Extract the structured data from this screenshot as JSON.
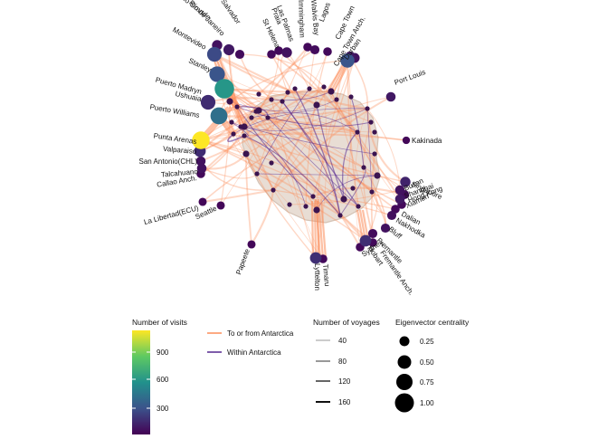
{
  "chart_data": {
    "type": "network map (polar projection)",
    "nodes": [
      {
        "id": "Port Louis",
        "visits": 80,
        "centrality": 0.06
      },
      {
        "id": "Kakinada",
        "visits": 20,
        "centrality": 0.02
      },
      {
        "id": "Singapore",
        "visits": 120,
        "centrality": 0.08
      },
      {
        "id": "Busan",
        "visits": 60,
        "centrality": 0.06
      },
      {
        "id": "Shanghai",
        "visits": 80,
        "centrality": 0.06
      },
      {
        "id": "Hong Kong",
        "visits": 40,
        "centrality": 0.05
      },
      {
        "id": "Xiamen",
        "visits": 30,
        "centrality": 0.04
      },
      {
        "id": "Dalian",
        "visits": 30,
        "centrality": 0.04
      },
      {
        "id": "Nakhodka",
        "visits": 50,
        "centrality": 0.05
      },
      {
        "id": "Bluff",
        "visits": 60,
        "centrality": 0.05
      },
      {
        "id": "Fremantle",
        "visits": 40,
        "centrality": 0.05
      },
      {
        "id": "Hobart",
        "visits": 160,
        "centrality": 0.12
      },
      {
        "id": "Fremantle Anch.",
        "visits": 30,
        "centrality": 0.04
      },
      {
        "id": "Sydney",
        "visits": 30,
        "centrality": 0.04
      },
      {
        "id": "Lyttelton",
        "visits": 160,
        "centrality": 0.12
      },
      {
        "id": "Timaru",
        "visits": 30,
        "centrality": 0.04
      },
      {
        "id": "Papeete",
        "visits": 20,
        "centrality": 0.03
      },
      {
        "id": "Seattle",
        "visits": 20,
        "centrality": 0.03
      },
      {
        "id": "La Libertad(ECU)",
        "visits": 20,
        "centrality": 0.03
      },
      {
        "id": "Callao Anch.",
        "visits": 30,
        "centrality": 0.04
      },
      {
        "id": "Talcahuano",
        "visits": 60,
        "centrality": 0.06
      },
      {
        "id": "San Antonio(CHL)",
        "visits": 60,
        "centrality": 0.06
      },
      {
        "id": "Valparaiso",
        "visits": 150,
        "centrality": 0.12
      },
      {
        "id": "Punta Arenas",
        "visits": 1150,
        "centrality": 0.42
      },
      {
        "id": "Puerto Williams",
        "visits": 420,
        "centrality": 0.38
      },
      {
        "id": "Ushuaia",
        "visits": 600,
        "centrality": 0.55
      },
      {
        "id": "Puerto Madryn",
        "visits": 150,
        "centrality": 0.25
      },
      {
        "id": "Stanley",
        "visits": 300,
        "centrality": 0.3
      },
      {
        "id": "Montevideo",
        "visits": 260,
        "centrality": 0.25
      },
      {
        "id": "Rio de Janeiro",
        "visits": 80,
        "centrality": 0.1
      },
      {
        "id": "Rio Grande",
        "visits": 60,
        "centrality": 0.08
      },
      {
        "id": "Salvador",
        "visits": 40,
        "centrality": 0.05
      },
      {
        "id": "Las Palmas",
        "visits": 60,
        "centrality": 0.08
      },
      {
        "id": "St Helena",
        "visits": 30,
        "centrality": 0.04
      },
      {
        "id": "Immingham",
        "visits": 30,
        "centrality": 0.04
      },
      {
        "id": "Walvis Bay",
        "visits": 40,
        "centrality": 0.05
      },
      {
        "id": "Lagos",
        "visits": 30,
        "centrality": 0.04
      },
      {
        "id": "Cape Town",
        "visits": 300,
        "centrality": 0.22
      },
      {
        "id": "Cape Town Anch.",
        "visits": 80,
        "centrality": 0.1
      },
      {
        "id": "Durban",
        "visits": 60,
        "centrality": 0.07
      },
      {
        "id": "Praia",
        "visits": 30,
        "centrality": 0.04
      }
    ],
    "edges_summary": [
      {
        "type": "To or from Antarctica",
        "color": "#fc8d59"
      },
      {
        "type": "Within Antarctica",
        "color": "#54278f"
      }
    ],
    "legend": {
      "visits": {
        "title": "Number of visits",
        "ticks": [
          300,
          600,
          900
        ],
        "scale": "viridis",
        "range": [
          0,
          1150
        ]
      },
      "edge_types": [
        "To or from Antarctica",
        "Within Antarctica"
      ],
      "voyages": {
        "title": "Number of voyages",
        "ticks": [
          40,
          80,
          120,
          160
        ]
      },
      "centrality": {
        "title": "Eigenvector centrality",
        "ticks": [
          "0.25",
          "0.50",
          "0.75",
          "1.00"
        ]
      }
    }
  },
  "colors": {
    "antarctica_fill": "#e8ddd4",
    "antarctica_outline": "#d4c2b4",
    "edge_to_from": "#fc8d59",
    "edge_within": "#54278f"
  }
}
